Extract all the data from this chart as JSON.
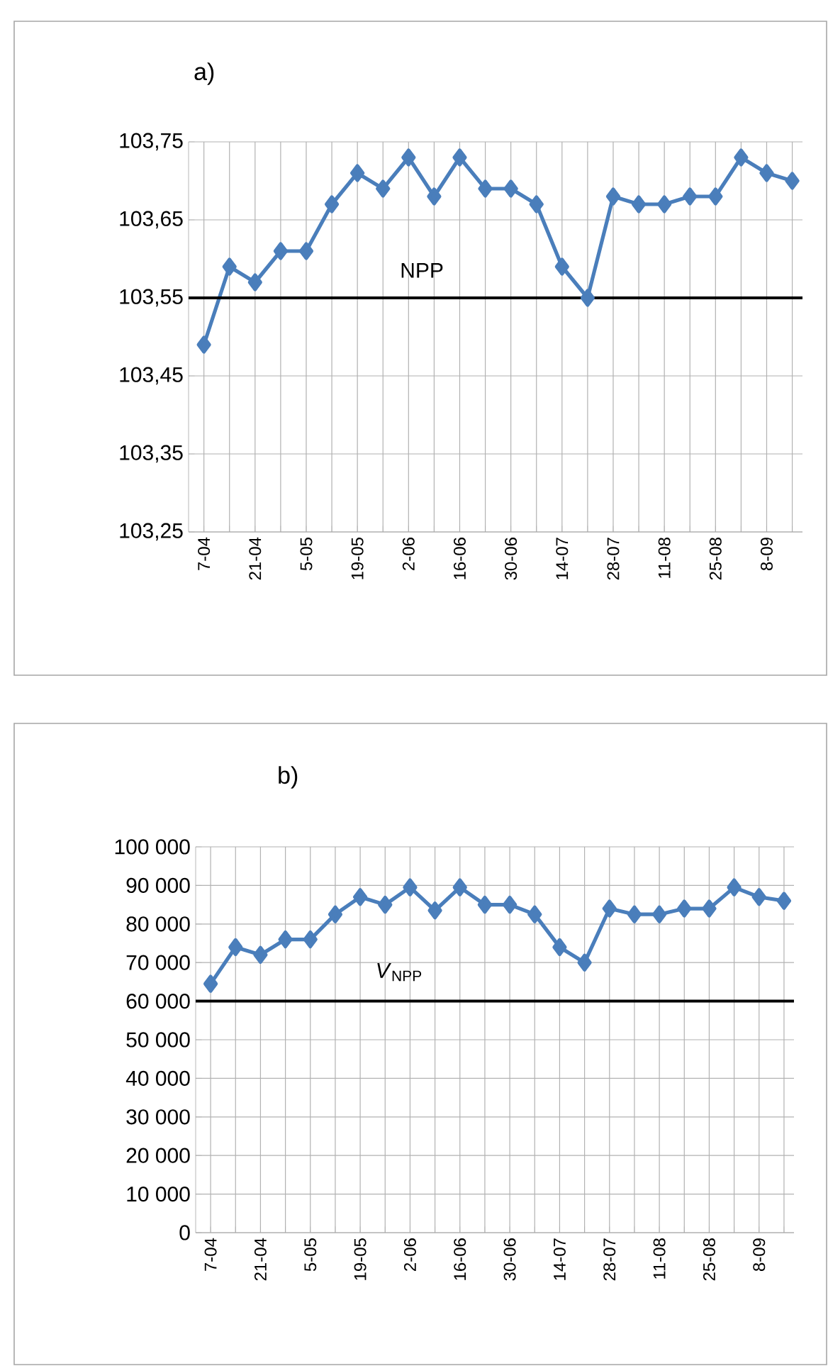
{
  "chart_data": [
    {
      "type": "line",
      "title": "a)",
      "categories": [
        "7-04",
        null,
        "21-04",
        null,
        "5-05",
        null,
        "19-05",
        null,
        "2-06",
        null,
        "16-06",
        null,
        "30-06",
        null,
        "14-07",
        null,
        "28-07",
        null,
        "11-08",
        null,
        "25-08",
        null,
        "8-09",
        null
      ],
      "series": [
        {
          "color": "#4a7ebb",
          "values": [
            103.49,
            103.59,
            103.57,
            103.61,
            103.61,
            103.67,
            103.71,
            103.69,
            103.73,
            103.68,
            103.73,
            103.69,
            103.69,
            103.67,
            103.59,
            103.55,
            103.68,
            103.67,
            103.67,
            103.68,
            103.68,
            103.73,
            103.71,
            103.7
          ]
        }
      ],
      "ylim": [
        103.25,
        103.75
      ],
      "yticks": [
        {
          "value": 103.25,
          "label": "103,25"
        },
        {
          "value": 103.35,
          "label": "103,35"
        },
        {
          "value": 103.45,
          "label": "103,45"
        },
        {
          "value": 103.55,
          "label": "103,55"
        },
        {
          "value": 103.65,
          "label": "103,65"
        },
        {
          "value": 103.75,
          "label": "103,75"
        }
      ],
      "grid": true,
      "marker": "diamond",
      "line_style": "solid",
      "ref_lines": [
        {
          "axis": "y",
          "value": 103.55,
          "label": "NPP",
          "color": "#000000"
        }
      ]
    },
    {
      "type": "line",
      "title": "b)",
      "categories": [
        "7-04",
        null,
        "21-04",
        null,
        "5-05",
        null,
        "19-05",
        null,
        "2-06",
        null,
        "16-06",
        null,
        "30-06",
        null,
        "14-07",
        null,
        "28-07",
        null,
        "11-08",
        null,
        "25-08",
        null,
        "8-09",
        null
      ],
      "series": [
        {
          "color": "#4a7ebb",
          "values": [
            64500,
            74000,
            72000,
            76000,
            76000,
            82500,
            87000,
            85000,
            89500,
            83500,
            89500,
            85000,
            85000,
            82500,
            74000,
            70000,
            84000,
            82500,
            82500,
            84000,
            84000,
            89500,
            87000,
            86000
          ]
        }
      ],
      "ylim": [
        0,
        100000
      ],
      "yticks": [
        {
          "value": 0,
          "label": "0"
        },
        {
          "value": 10000,
          "label": "10 000"
        },
        {
          "value": 20000,
          "label": "20 000"
        },
        {
          "value": 30000,
          "label": "30 000"
        },
        {
          "value": 40000,
          "label": "40 000"
        },
        {
          "value": 50000,
          "label": "50 000"
        },
        {
          "value": 60000,
          "label": "60 000"
        },
        {
          "value": 70000,
          "label": "70 000"
        },
        {
          "value": 80000,
          "label": "80 000"
        },
        {
          "value": 90000,
          "label": "90 000"
        },
        {
          "value": 100000,
          "label": "100 000"
        }
      ],
      "grid": true,
      "marker": "diamond",
      "line_style": "solid",
      "ref_lines": [
        {
          "axis": "y",
          "value": 60000,
          "label": "*V*$_{NPP}$",
          "color": "#000000"
        }
      ]
    }
  ]
}
